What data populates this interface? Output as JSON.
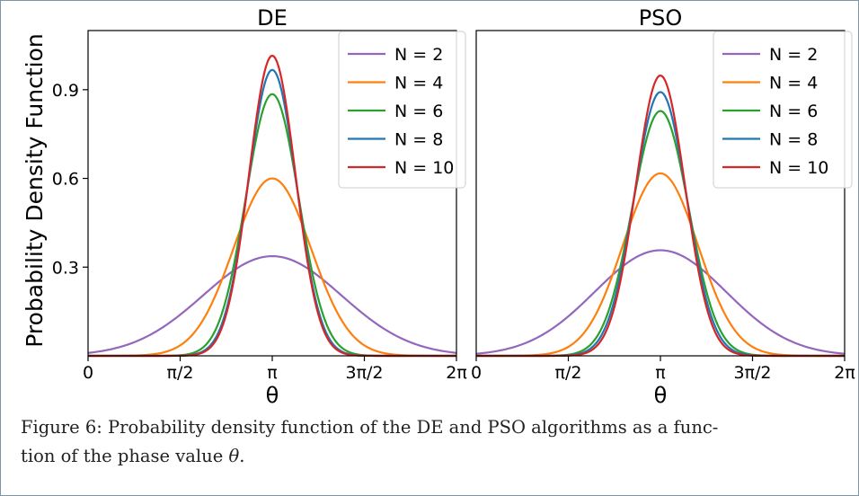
{
  "caption": {
    "prefix": "Figure 6: Probability density function of the DE and PSO algorithms as a func-",
    "line2_prefix": "tion of the phase value ",
    "symbol": "θ",
    "suffix": "."
  },
  "chart_data": [
    {
      "type": "line",
      "title": "DE",
      "xlabel": "θ",
      "ylabel": "Probability Density Function",
      "x_range": [
        0,
        6.2832
      ],
      "ylim": [
        0,
        1.1
      ],
      "x_ticks": [
        {
          "value": 0,
          "label": "0"
        },
        {
          "value": 1.5708,
          "label": "π/2"
        },
        {
          "value": 3.1416,
          "label": "π"
        },
        {
          "value": 4.7124,
          "label": "3π/2"
        },
        {
          "value": 6.2832,
          "label": "2π"
        }
      ],
      "y_ticks": [
        {
          "value": 0.3,
          "label": "0.3"
        },
        {
          "value": 0.6,
          "label": "0.6"
        },
        {
          "value": 0.9,
          "label": "0.9"
        }
      ],
      "grid": false,
      "legend_position": "top-right",
      "series": [
        {
          "name": "N = 2",
          "color": "#9467bd",
          "center": 3.1416,
          "peak": 0.337,
          "sigma": 1.18
        },
        {
          "name": "N = 4",
          "color": "#ff7f0e",
          "center": 3.1416,
          "peak": 0.6,
          "sigma": 0.66
        },
        {
          "name": "N = 6",
          "color": "#2ca02c",
          "center": 3.1416,
          "peak": 0.885,
          "sigma": 0.45
        },
        {
          "name": "N = 8",
          "color": "#1f77b4",
          "center": 3.1416,
          "peak": 0.967,
          "sigma": 0.41
        },
        {
          "name": "N = 10",
          "color": "#d62728",
          "center": 3.1416,
          "peak": 1.015,
          "sigma": 0.395
        }
      ]
    },
    {
      "type": "line",
      "title": "PSO",
      "xlabel": "θ",
      "ylabel": "",
      "x_range": [
        0,
        6.2832
      ],
      "ylim": [
        0,
        1.1
      ],
      "x_ticks": [
        {
          "value": 0,
          "label": "0"
        },
        {
          "value": 1.5708,
          "label": "π/2"
        },
        {
          "value": 3.1416,
          "label": "π"
        },
        {
          "value": 4.7124,
          "label": "3π/2"
        },
        {
          "value": 6.2832,
          "label": "2π"
        }
      ],
      "y_ticks": [],
      "grid": false,
      "legend_position": "top-right",
      "series": [
        {
          "name": "N = 2",
          "color": "#9467bd",
          "center": 3.1416,
          "peak": 0.357,
          "sigma": 1.12
        },
        {
          "name": "N = 4",
          "color": "#ff7f0e",
          "center": 3.1416,
          "peak": 0.617,
          "sigma": 0.64
        },
        {
          "name": "N = 6",
          "color": "#2ca02c",
          "center": 3.1416,
          "peak": 0.828,
          "sigma": 0.48
        },
        {
          "name": "N = 8",
          "color": "#1f77b4",
          "center": 3.1416,
          "peak": 0.892,
          "sigma": 0.445
        },
        {
          "name": "N = 10",
          "color": "#d62728",
          "center": 3.1416,
          "peak": 0.948,
          "sigma": 0.42
        }
      ]
    }
  ]
}
